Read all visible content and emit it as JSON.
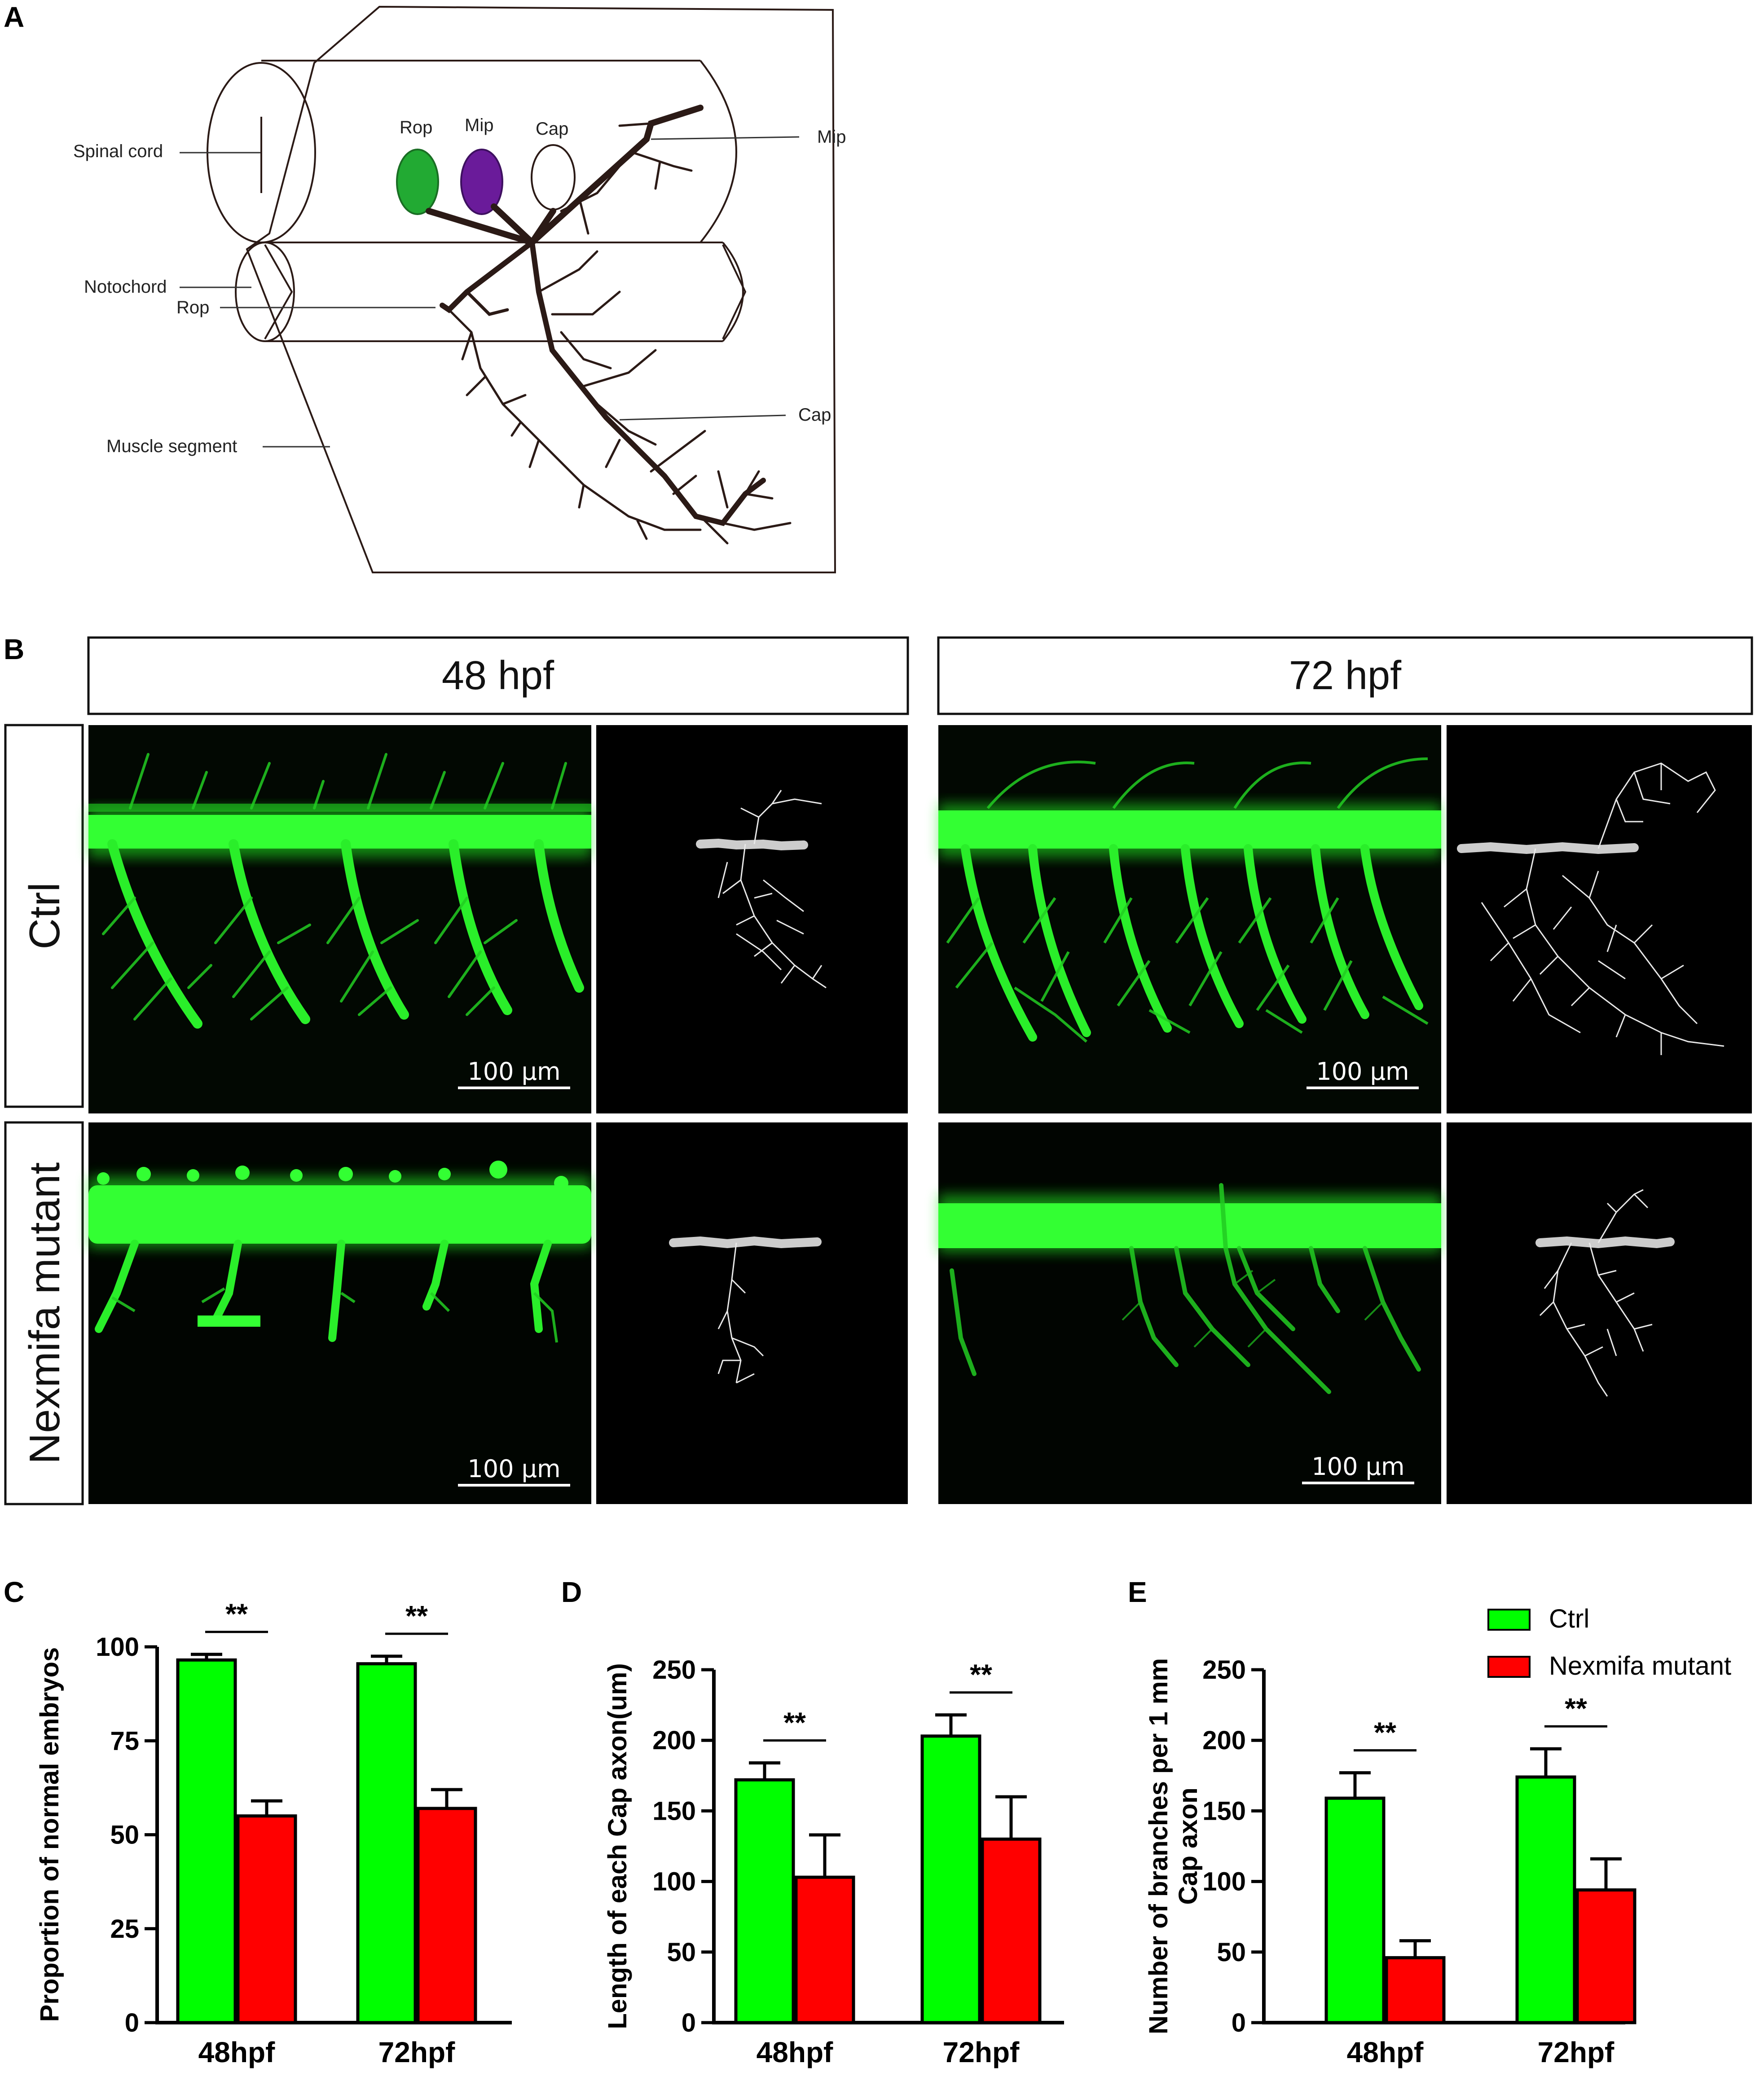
{
  "colors": {
    "ctrl": "#00ff00",
    "mutant": "#ff0000",
    "fluorescence": "#22ee22",
    "rop_cell": "#22aa33",
    "mip_cell": "#6a1b9a",
    "axon_dark": "#2b1a16"
  },
  "panelA": {
    "letter": "A",
    "labels": {
      "spinal_cord": "Spinal cord",
      "notochord": "Notochord",
      "rop_left": "Rop",
      "muscle_segment": "Muscle segment",
      "rop_cell": "Rop",
      "mip_cell": "Mip",
      "cap_cell": "Cap",
      "mip_right": "Mip",
      "cap_right": "Cap"
    }
  },
  "panelB": {
    "letter": "B",
    "headers": [
      "48 hpf",
      "72 hpf"
    ],
    "rows": [
      "Ctrl",
      "Nexmifa mutant"
    ],
    "scale_bar": "100 μm"
  },
  "legend": {
    "ctrl": "Ctrl",
    "mutant": "Nexmifa mutant"
  },
  "chart_data": [
    {
      "panel": "C",
      "type": "bar",
      "categories": [
        "48hpf",
        "72hpf"
      ],
      "ylabel": "Proportion of normal embryos",
      "ylim": [
        0,
        100
      ],
      "yticks": [
        0,
        25,
        50,
        75,
        100
      ],
      "series": [
        {
          "name": "Ctrl",
          "values": [
            96.5,
            95.5
          ],
          "errors": [
            1.5,
            2.0
          ]
        },
        {
          "name": "Nexmifa mutant",
          "values": [
            55,
            57
          ],
          "errors": [
            4,
            5
          ]
        }
      ],
      "significance": [
        "**",
        "**"
      ]
    },
    {
      "panel": "D",
      "type": "bar",
      "categories": [
        "48hpf",
        "72hpf"
      ],
      "ylabel": "Length of each Cap axon(um)",
      "ylim": [
        0,
        250
      ],
      "yticks": [
        0,
        50,
        100,
        150,
        200,
        250
      ],
      "series": [
        {
          "name": "Ctrl",
          "values": [
            172,
            203
          ],
          "errors": [
            12,
            15
          ]
        },
        {
          "name": "Nexmifa mutant",
          "values": [
            103,
            130
          ],
          "errors": [
            30,
            30
          ]
        }
      ],
      "significance": [
        "**",
        "**"
      ]
    },
    {
      "panel": "E",
      "type": "bar",
      "categories": [
        "48hpf",
        "72hpf"
      ],
      "ylabel": [
        "Number of branches per 1 mm",
        "Cap axon"
      ],
      "ylim": [
        0,
        250
      ],
      "yticks": [
        0,
        50,
        100,
        150,
        200,
        250
      ],
      "series": [
        {
          "name": "Ctrl",
          "values": [
            159,
            174
          ],
          "errors": [
            18,
            20
          ]
        },
        {
          "name": "Nexmifa mutant",
          "values": [
            46,
            94
          ],
          "errors": [
            12,
            22
          ]
        }
      ],
      "significance": [
        "**",
        "**"
      ]
    }
  ]
}
